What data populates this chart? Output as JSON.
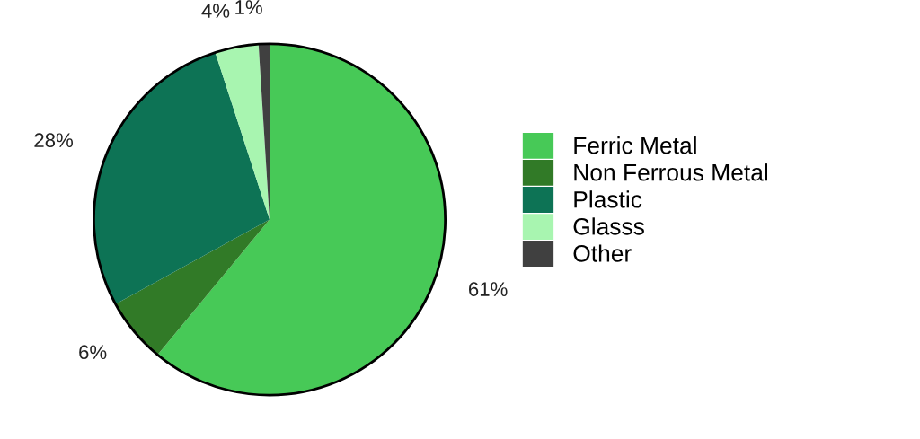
{
  "chart_data": {
    "type": "pie",
    "categories": [
      "Ferric Metal",
      "Non Ferrous Metal",
      "Plastic",
      "Glasss",
      "Other"
    ],
    "values": [
      61,
      6,
      28,
      4,
      1
    ],
    "colors": [
      "#47c957",
      "#317a27",
      "#0d7355",
      "#a8f5b0",
      "#404040"
    ],
    "value_labels": [
      "61%",
      "6%",
      "28%",
      "4%",
      "1%"
    ],
    "legend": "right"
  }
}
